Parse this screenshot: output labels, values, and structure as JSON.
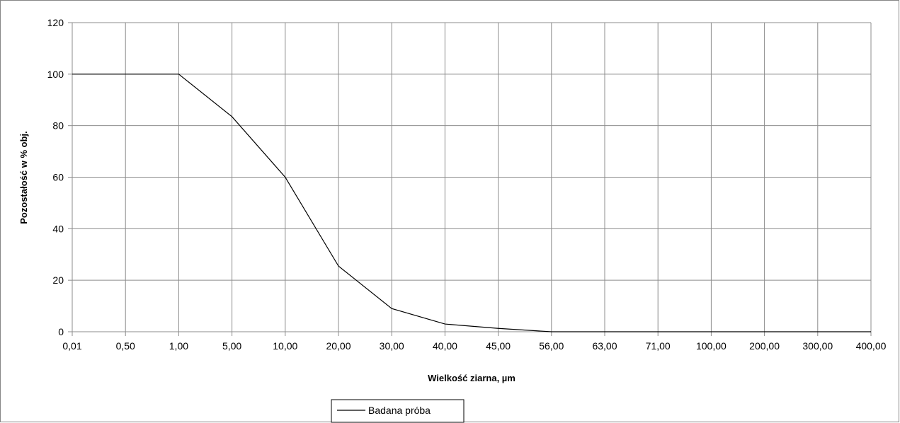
{
  "chart_data": {
    "type": "line",
    "title": "",
    "xlabel": "Wielkość ziarna, µm",
    "ylabel": "Pozostałość w % obj.",
    "categories": [
      "0,01",
      "0,50",
      "1,00",
      "5,00",
      "10,00",
      "20,00",
      "30,00",
      "40,00",
      "45,00",
      "56,00",
      "63,00",
      "71,00",
      "100,00",
      "200,00",
      "300,00",
      "400,00"
    ],
    "series": [
      {
        "name": "Badana próba",
        "color": "#000000",
        "values": [
          100,
          100,
          100,
          83.5,
          60,
          25.5,
          9,
          3,
          1.3,
          0,
          0,
          0,
          0,
          0,
          0,
          0
        ]
      }
    ],
    "ylim": [
      0,
      120
    ],
    "yticks": [
      "0",
      "20",
      "40",
      "60",
      "80",
      "100",
      "120"
    ],
    "grid": true,
    "legend_position": "bottom"
  }
}
